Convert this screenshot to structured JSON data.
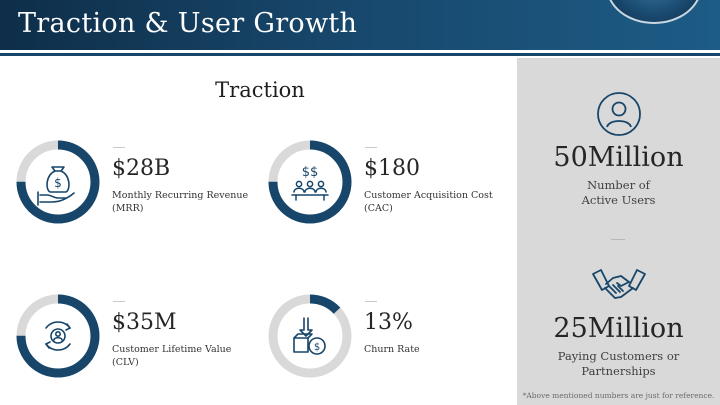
{
  "header": {
    "title": "Traction & User Growth"
  },
  "section": {
    "title": "Traction"
  },
  "metrics": [
    {
      "value": "$28B",
      "label_line1": "Monthly Recurring Revenue",
      "label_line2": "(MRR)",
      "icon": "money-bag-hand-icon",
      "progress": 0.75
    },
    {
      "value": "$180",
      "label_line1": "Customer Acquisition Cost",
      "label_line2": "(CAC)",
      "icon": "customer-acquisition-icon",
      "progress": 0.75
    },
    {
      "value": "$35M",
      "label_line1": "Customer Lifetime Value",
      "label_line2": "(CLV)",
      "icon": "lifecycle-user-icon",
      "progress": 0.75
    },
    {
      "value": "13%",
      "label_line1": "Churn Rate",
      "label_line2": "",
      "icon": "churn-box-icon",
      "progress": 0.13
    }
  ],
  "panel": {
    "users_value": "50Million",
    "users_label_line1": "Number of",
    "users_label_line2": "Active Users",
    "customers_value": "25Million",
    "customers_label_line1": "Paying Customers or",
    "customers_label_line2": "Partnerships",
    "note": "*Above mentioned numbers are just for reference."
  },
  "colors": {
    "accent": "#17466a",
    "ring_track": "#d9d9d9",
    "panel_bg": "#d9d9d9"
  }
}
